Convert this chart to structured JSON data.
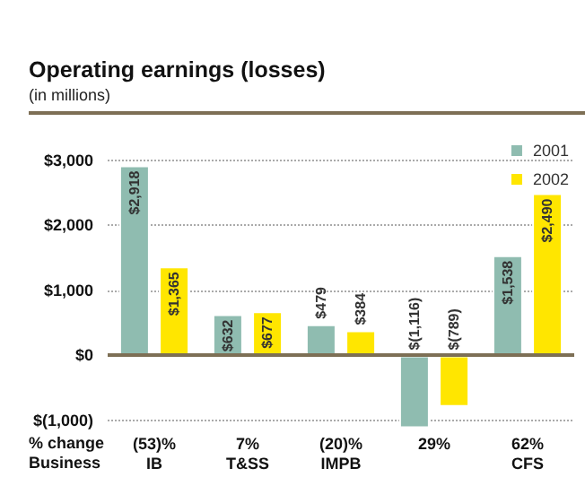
{
  "chart_data": {
    "type": "bar",
    "title": "Operating earnings (losses)",
    "subtitle": "(in millions)",
    "categories": [
      "(53)%\nIB",
      "7%\nT&SS",
      "(20)%\nIMPB",
      "29%",
      "62%\nCFS"
    ],
    "series": [
      {
        "name": "2001",
        "color": "#8fbcb0",
        "values": [
          2918,
          632,
          479,
          -1116,
          1538
        ],
        "value_labels": [
          "$2,918",
          "$632",
          "$479",
          "$(1,116)",
          "$1,538"
        ]
      },
      {
        "name": "2002",
        "color": "#ffe600",
        "values": [
          1365,
          677,
          384,
          -789,
          2490
        ],
        "value_labels": [
          "$1,365",
          "$677",
          "$384",
          "$(789)",
          "$2,490"
        ]
      }
    ],
    "ylim": [
      -1150,
      3200
    ],
    "yticks": [
      {
        "value": -1000,
        "label": "$(1,000)"
      },
      {
        "value": 0,
        "label": "$0"
      },
      {
        "value": 1000,
        "label": "$1,000"
      },
      {
        "value": 2000,
        "label": "$2,000"
      },
      {
        "value": 3000,
        "label": "$3,000"
      }
    ],
    "annotations": [
      "% change",
      "Business"
    ],
    "grid": "y",
    "legend": "top right"
  }
}
